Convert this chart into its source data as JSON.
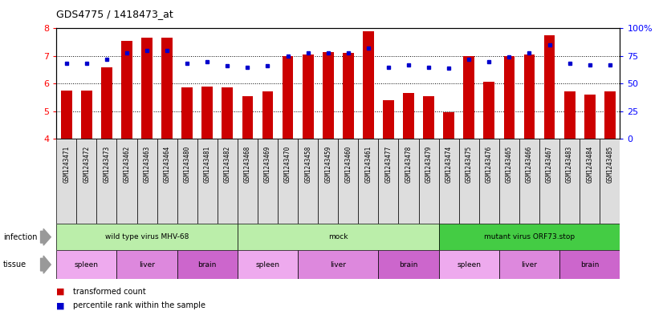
{
  "title": "GDS4775 / 1418473_at",
  "samples": [
    "GSM1243471",
    "GSM1243472",
    "GSM1243473",
    "GSM1243462",
    "GSM1243463",
    "GSM1243464",
    "GSM1243480",
    "GSM1243481",
    "GSM1243482",
    "GSM1243468",
    "GSM1243469",
    "GSM1243470",
    "GSM1243458",
    "GSM1243459",
    "GSM1243460",
    "GSM1243461",
    "GSM1243477",
    "GSM1243478",
    "GSM1243479",
    "GSM1243474",
    "GSM1243475",
    "GSM1243476",
    "GSM1243465",
    "GSM1243466",
    "GSM1243467",
    "GSM1243483",
    "GSM1243484",
    "GSM1243485"
  ],
  "bar_values": [
    5.75,
    5.75,
    6.6,
    7.55,
    7.65,
    7.65,
    5.85,
    5.9,
    5.85,
    5.55,
    5.7,
    7.0,
    7.05,
    7.15,
    7.1,
    7.9,
    5.4,
    5.65,
    5.55,
    4.95,
    7.0,
    6.05,
    7.0,
    7.05,
    7.75,
    5.7,
    5.6,
    5.7
  ],
  "percentile_values": [
    68,
    68,
    72,
    78,
    80,
    80,
    68,
    70,
    66,
    65,
    66,
    75,
    78,
    78,
    78,
    82,
    65,
    67,
    65,
    64,
    72,
    70,
    74,
    78,
    85,
    68,
    67,
    67
  ],
  "bar_color": "#cc0000",
  "percentile_color": "#0000cc",
  "ylim_left": [
    4,
    8
  ],
  "ylim_right": [
    0,
    100
  ],
  "yticks_left": [
    4,
    5,
    6,
    7,
    8
  ],
  "yticks_right": [
    0,
    25,
    50,
    75,
    100
  ],
  "infection_groups": [
    {
      "label": "wild type virus MHV-68",
      "start": 0,
      "end": 9,
      "color": "#bbeeaa"
    },
    {
      "label": "mock",
      "start": 9,
      "end": 19,
      "color": "#bbeeaa"
    },
    {
      "label": "mutant virus ORF73.stop",
      "start": 19,
      "end": 28,
      "color": "#44cc44"
    }
  ],
  "tissue_groups": [
    {
      "label": "spleen",
      "start": 0,
      "end": 3,
      "color": "#eeaaee"
    },
    {
      "label": "liver",
      "start": 3,
      "end": 6,
      "color": "#dd88dd"
    },
    {
      "label": "brain",
      "start": 6,
      "end": 9,
      "color": "#cc66cc"
    },
    {
      "label": "spleen",
      "start": 9,
      "end": 12,
      "color": "#eeaaee"
    },
    {
      "label": "liver",
      "start": 12,
      "end": 16,
      "color": "#dd88dd"
    },
    {
      "label": "brain",
      "start": 16,
      "end": 19,
      "color": "#cc66cc"
    },
    {
      "label": "spleen",
      "start": 19,
      "end": 22,
      "color": "#eeaaee"
    },
    {
      "label": "liver",
      "start": 22,
      "end": 25,
      "color": "#dd88dd"
    },
    {
      "label": "brain",
      "start": 25,
      "end": 28,
      "color": "#cc66cc"
    }
  ],
  "tick_bg_color": "#dddddd",
  "fig_bg_color": "#ffffff"
}
